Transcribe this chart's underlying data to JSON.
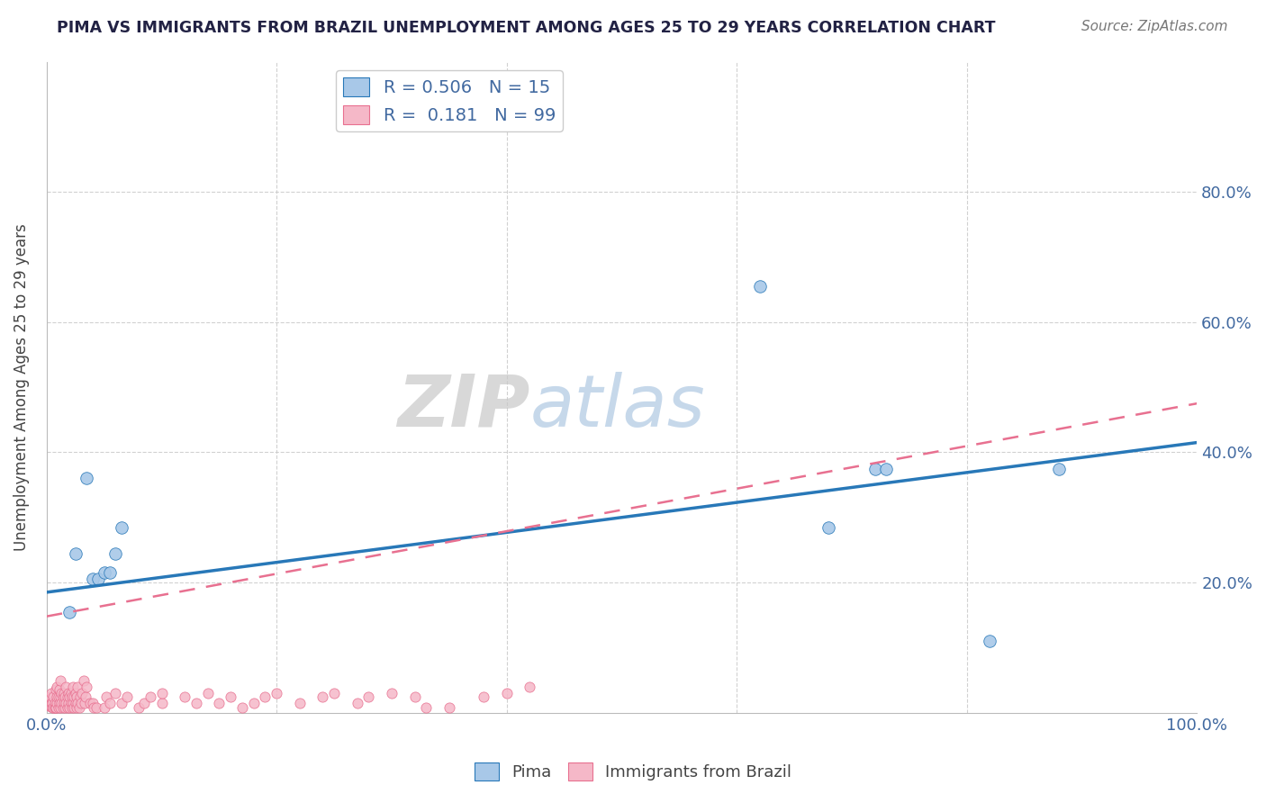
{
  "title": "PIMA VS IMMIGRANTS FROM BRAZIL UNEMPLOYMENT AMONG AGES 25 TO 29 YEARS CORRELATION CHART",
  "source": "Source: ZipAtlas.com",
  "ylabel": "Unemployment Among Ages 25 to 29 years",
  "xlim": [
    0,
    1.0
  ],
  "ylim": [
    0,
    1.0
  ],
  "legend_entry1_r": "R = 0.506",
  "legend_entry1_n": "N = 15",
  "legend_entry2_r": "R =  0.181",
  "legend_entry2_n": "N = 99",
  "color_blue": "#a8c8e8",
  "color_pink": "#f5b8c8",
  "line_blue": "#2878b8",
  "line_pink": "#e87090",
  "watermark_zip": "ZIP",
  "watermark_atlas": "atlas",
  "blue_line_x0": 0.0,
  "blue_line_y0": 0.185,
  "blue_line_x1": 1.0,
  "blue_line_y1": 0.415,
  "pink_line_x0": 0.0,
  "pink_line_y0": 0.148,
  "pink_line_x1": 1.0,
  "pink_line_y1": 0.475,
  "pima_x": [
    0.02,
    0.025,
    0.035,
    0.04,
    0.045,
    0.05,
    0.055,
    0.06,
    0.065,
    0.62,
    0.68,
    0.72,
    0.73,
    0.82,
    0.88
  ],
  "pima_y": [
    0.155,
    0.245,
    0.36,
    0.205,
    0.205,
    0.215,
    0.215,
    0.245,
    0.285,
    0.655,
    0.285,
    0.375,
    0.375,
    0.11,
    0.375
  ],
  "brazil_x": [
    0.001,
    0.002,
    0.003,
    0.003,
    0.004,
    0.004,
    0.005,
    0.005,
    0.006,
    0.006,
    0.007,
    0.007,
    0.008,
    0.008,
    0.008,
    0.009,
    0.009,
    0.009,
    0.01,
    0.01,
    0.011,
    0.011,
    0.012,
    0.012,
    0.012,
    0.013,
    0.013,
    0.014,
    0.014,
    0.015,
    0.015,
    0.016,
    0.016,
    0.017,
    0.017,
    0.018,
    0.018,
    0.019,
    0.019,
    0.02,
    0.02,
    0.021,
    0.021,
    0.022,
    0.022,
    0.023,
    0.023,
    0.024,
    0.024,
    0.025,
    0.025,
    0.026,
    0.026,
    0.027,
    0.027,
    0.028,
    0.029,
    0.03,
    0.031,
    0.032,
    0.033,
    0.034,
    0.035,
    0.038,
    0.04,
    0.041,
    0.043,
    0.05,
    0.052,
    0.055,
    0.06,
    0.065,
    0.07,
    0.08,
    0.085,
    0.09,
    0.1,
    0.1,
    0.12,
    0.13,
    0.14,
    0.15,
    0.16,
    0.17,
    0.18,
    0.19,
    0.2,
    0.22,
    0.24,
    0.25,
    0.27,
    0.28,
    0.3,
    0.32,
    0.33,
    0.35,
    0.38,
    0.4,
    0.42
  ],
  "brazil_y": [
    0.015,
    0.01,
    0.01,
    0.025,
    0.015,
    0.03,
    0.008,
    0.015,
    0.008,
    0.025,
    0.008,
    0.015,
    0.008,
    0.035,
    0.008,
    0.015,
    0.025,
    0.04,
    0.008,
    0.025,
    0.015,
    0.035,
    0.008,
    0.025,
    0.05,
    0.015,
    0.03,
    0.008,
    0.025,
    0.015,
    0.03,
    0.008,
    0.025,
    0.015,
    0.04,
    0.008,
    0.025,
    0.015,
    0.03,
    0.008,
    0.025,
    0.015,
    0.03,
    0.008,
    0.025,
    0.015,
    0.04,
    0.008,
    0.025,
    0.015,
    0.03,
    0.008,
    0.025,
    0.015,
    0.04,
    0.008,
    0.025,
    0.015,
    0.03,
    0.05,
    0.015,
    0.025,
    0.04,
    0.015,
    0.015,
    0.008,
    0.008,
    0.008,
    0.025,
    0.015,
    0.03,
    0.015,
    0.025,
    0.008,
    0.015,
    0.025,
    0.015,
    0.03,
    0.025,
    0.015,
    0.03,
    0.015,
    0.025,
    0.008,
    0.015,
    0.025,
    0.03,
    0.015,
    0.025,
    0.03,
    0.015,
    0.025,
    0.03,
    0.025,
    0.008,
    0.008,
    0.025,
    0.03,
    0.04
  ],
  "background_color": "#ffffff",
  "grid_color": "#cccccc",
  "title_color": "#222244",
  "axis_color": "#4169a0"
}
